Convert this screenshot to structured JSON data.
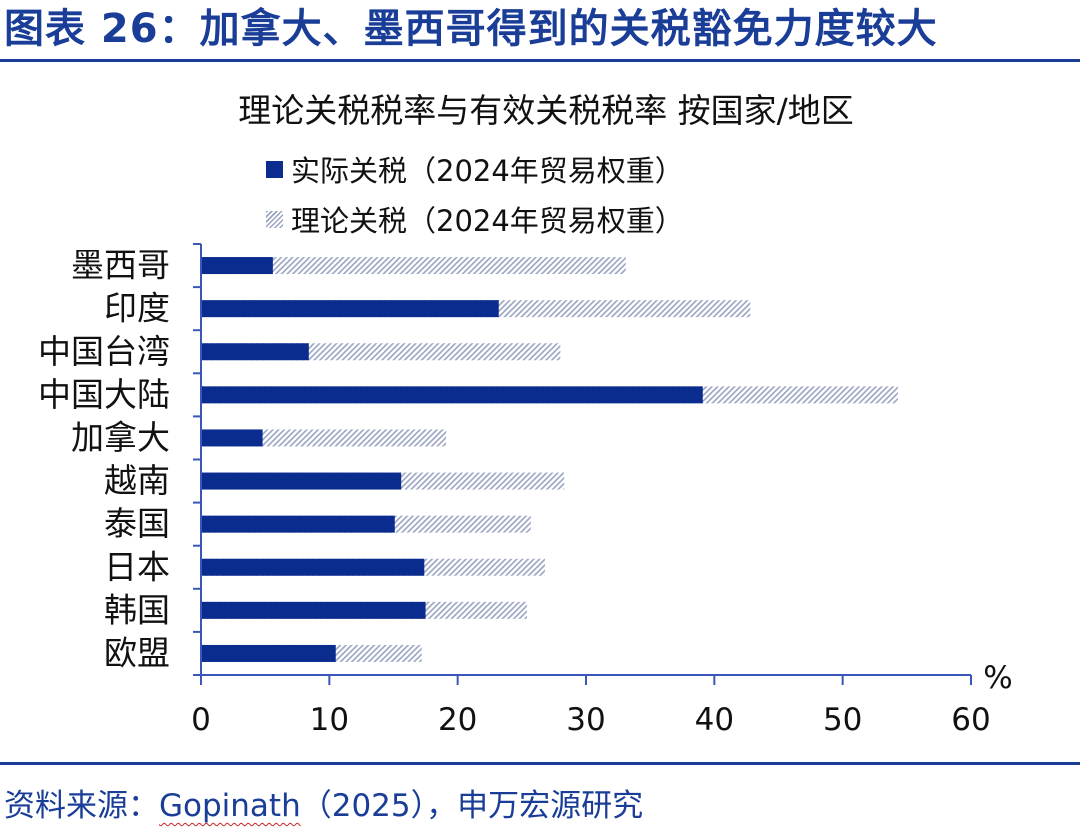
{
  "figure_title": "图表 26：加拿大、墨西哥得到的关税豁免力度较大",
  "source": {
    "prefix": "资料来源：",
    "author": "Gopinath",
    "suffix": "（2025），申万宏源研究"
  },
  "colors": {
    "brand": "#1a3e97",
    "actual_bar": "#0b2c8f",
    "theoretical_hatch": "#9aa3c2"
  },
  "chart_data": {
    "type": "bar",
    "orientation": "horizontal",
    "stacking": "overlay",
    "title": "理论关税税率与有效关税税率 按国家/地区",
    "categories": [
      "墨西哥",
      "印度",
      "中国台湾",
      "中国大陆",
      "加拿大",
      "越南",
      "泰国",
      "日本",
      "韩国",
      "欧盟"
    ],
    "series": [
      {
        "name": "实际关税（2024年贸易权重）",
        "style": "solid",
        "values": [
          5.6,
          23.2,
          8.4,
          39.1,
          4.8,
          15.6,
          15.1,
          17.4,
          17.5,
          10.5
        ]
      },
      {
        "name": "理论关税（2024年贸易权重）",
        "style": "hatched",
        "values": [
          33.1,
          42.8,
          28.0,
          54.3,
          19.1,
          28.3,
          25.7,
          26.8,
          25.4,
          17.2
        ]
      }
    ],
    "xlim": [
      0,
      60
    ],
    "xticks": [
      "0",
      "10",
      "20",
      "30",
      "40",
      "50",
      "60"
    ],
    "xunit": "%",
    "legend_position": "top-left",
    "grid": false
  }
}
